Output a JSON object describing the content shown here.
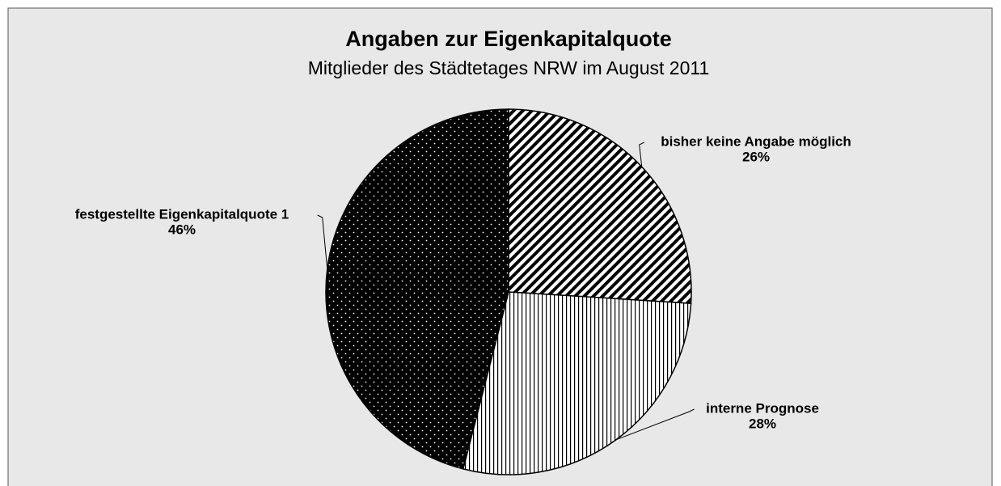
{
  "chart_data": {
    "type": "pie",
    "title": "Angaben zur Eigenkapitalquote",
    "subtitle": "Mitglieder des Städtetages NRW im August 2011",
    "categories": [
      "bisher keine Angabe möglich",
      "interne Prognose",
      "festgestellte Eigenkapitalquote 1"
    ],
    "values": [
      26,
      28,
      46
    ],
    "value_labels": [
      "26%",
      "28%",
      "46%"
    ],
    "patterns": [
      "diagonal-hatch",
      "vertical-lines",
      "dots"
    ]
  }
}
